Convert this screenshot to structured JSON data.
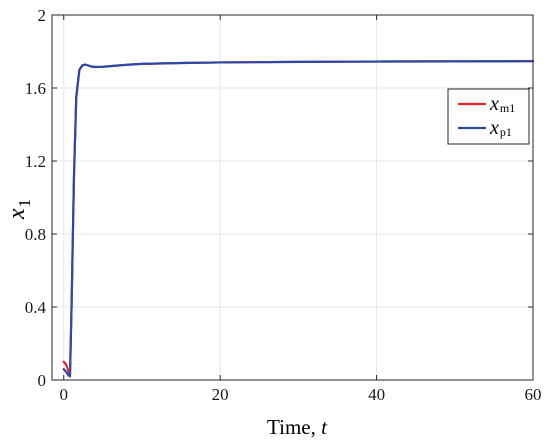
{
  "chart_data": {
    "type": "line",
    "xlabel_main": "Time, ",
    "xlabel_var": "t",
    "ylabel_var": "x",
    "ylabel_sub": "1",
    "xlim": [
      -1.5,
      60
    ],
    "ylim": [
      0,
      2
    ],
    "x_ticks": [
      0,
      20,
      40,
      60
    ],
    "y_ticks": [
      0,
      0.4,
      0.8,
      1.2,
      1.6,
      2
    ],
    "x_tick_labels": [
      "0",
      "20",
      "40",
      "60"
    ],
    "y_tick_labels": [
      "0",
      "0.4",
      "0.8",
      "1.2",
      "1.6",
      "2"
    ],
    "grid": true,
    "legend_position": "upper-right",
    "series": [
      {
        "name_var": "x",
        "name_sub": "m1",
        "color": "#e8202a",
        "x": [
          0,
          0.3,
          0.6,
          0.8,
          1.0,
          1.3,
          1.6,
          2.0,
          2.4,
          2.8,
          3.2,
          3.6,
          4.0,
          5,
          6,
          8,
          10,
          15,
          20,
          30,
          40,
          50,
          60
        ],
        "y": [
          0.1,
          0.085,
          0.05,
          0.03,
          0.4,
          1.1,
          1.55,
          1.7,
          1.725,
          1.728,
          1.722,
          1.717,
          1.715,
          1.716,
          1.72,
          1.727,
          1.732,
          1.737,
          1.74,
          1.743,
          1.745,
          1.746,
          1.747
        ]
      },
      {
        "name_var": "x",
        "name_sub": "p1",
        "color": "#2b4aa8",
        "x": [
          0,
          0.3,
          0.6,
          0.8,
          1.0,
          1.3,
          1.6,
          2.0,
          2.4,
          2.8,
          3.2,
          3.6,
          4.0,
          5,
          6,
          8,
          10,
          15,
          20,
          30,
          40,
          50,
          60
        ],
        "y": [
          0.06,
          0.045,
          0.025,
          0.02,
          0.4,
          1.1,
          1.55,
          1.7,
          1.725,
          1.728,
          1.722,
          1.717,
          1.715,
          1.716,
          1.72,
          1.727,
          1.732,
          1.737,
          1.74,
          1.743,
          1.745,
          1.746,
          1.747
        ]
      }
    ]
  }
}
